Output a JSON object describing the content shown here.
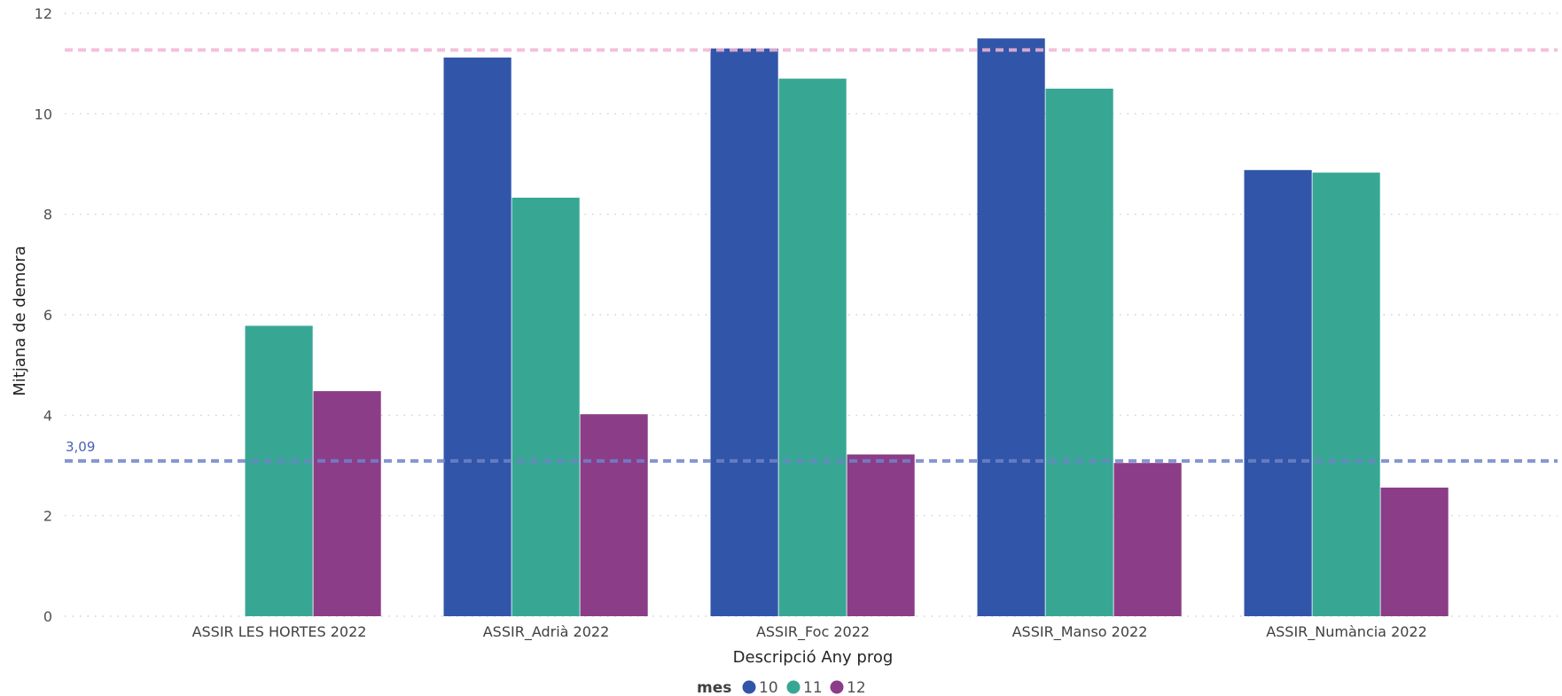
{
  "chart_data": {
    "type": "bar",
    "title": "",
    "xlabel": "Descripció Any prog",
    "ylabel": "Mitjana de demora",
    "ylim": [
      0,
      12
    ],
    "yticks": [
      "0",
      "2",
      "4",
      "6",
      "8",
      "10",
      "12"
    ],
    "grid": true,
    "legend_position": "bottom-center",
    "legend_title": "mes",
    "categories": [
      "ASSIR LES HORTES 2022",
      "ASSIR_Adrià 2022",
      "ASSIR_Foc 2022",
      "ASSIR_Manso 2022",
      "ASSIR_Numància 2022"
    ],
    "series": [
      {
        "name": "10",
        "color": "#3155A8",
        "values": [
          null,
          11.12,
          11.3,
          11.5,
          8.88
        ]
      },
      {
        "name": "11",
        "color": "#37A794",
        "values": [
          5.78,
          8.33,
          10.7,
          10.5,
          8.83
        ]
      },
      {
        "name": "12",
        "color": "#8B3D88",
        "values": [
          4.48,
          4.02,
          3.22,
          3.05,
          2.56
        ]
      }
    ],
    "reference_lines": [
      {
        "value": 3.09,
        "label": "3,09",
        "color": "#6F83C9"
      },
      {
        "value": 11.27,
        "label": "",
        "color": "#F2B6D6"
      }
    ]
  }
}
